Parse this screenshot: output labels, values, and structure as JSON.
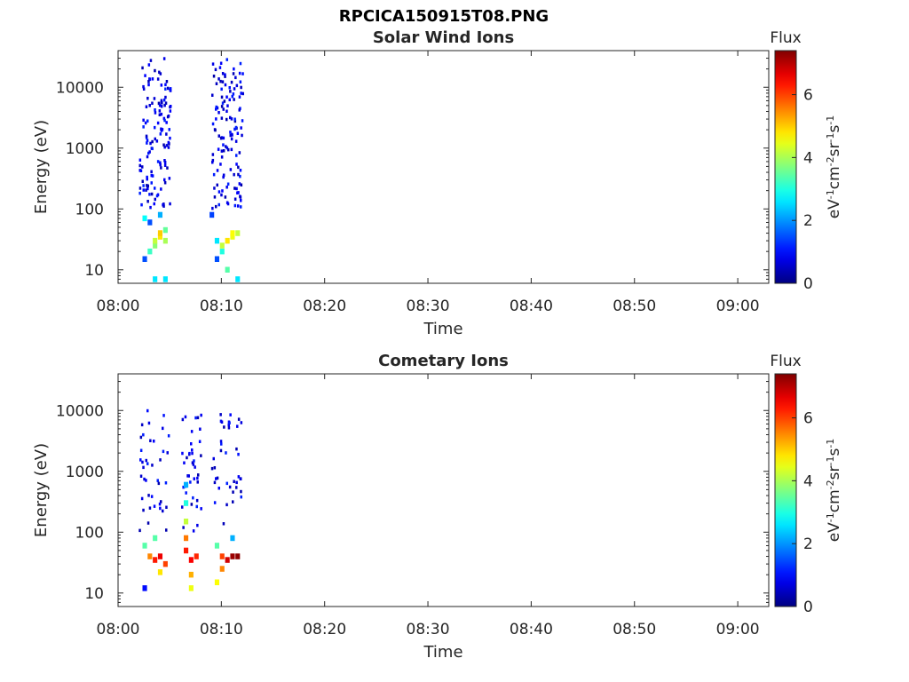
{
  "title": "RPCICA150915T08.PNG",
  "chart_data": [
    {
      "type": "heatmap",
      "title": "Solar Wind Ions",
      "xlabel": "Time",
      "ylabel": "Energy (eV)",
      "x_ticks": [
        "08:00",
        "08:10",
        "08:20",
        "08:30",
        "08:40",
        "08:50",
        "09:00"
      ],
      "x_range": [
        "08:00",
        "09:03"
      ],
      "y_ticks": [
        "10",
        "100",
        "1000",
        "10000"
      ],
      "y_range": [
        6,
        40000
      ],
      "y_scale": "log",
      "colorbar": {
        "label": "Flux",
        "units": "eV-1cm-2sr-1s-1",
        "range": [
          0,
          7.4
        ],
        "ticks": [
          "0",
          "2",
          "4",
          "6"
        ],
        "colormap": "jet"
      },
      "bursts": [
        {
          "start": "08:02",
          "end": "08:05",
          "cells": [
            {
              "t": "08:02:30",
              "e": 15,
              "v": 1.5
            },
            {
              "t": "08:03:00",
              "e": 20,
              "v": 3.2
            },
            {
              "t": "08:03:30",
              "e": 25,
              "v": 3.8
            },
            {
              "t": "08:03:30",
              "e": 30,
              "v": 4.2
            },
            {
              "t": "08:04:00",
              "e": 35,
              "v": 4.8
            },
            {
              "t": "08:04:00",
              "e": 40,
              "v": 5.0
            },
            {
              "t": "08:04:30",
              "e": 30,
              "v": 4.0
            },
            {
              "t": "08:04:30",
              "e": 45,
              "v": 3.5
            },
            {
              "t": "08:03:00",
              "e": 60,
              "v": 1.5
            },
            {
              "t": "08:04:00",
              "e": 80,
              "v": 2.2
            },
            {
              "t": "08:02:30",
              "e": 70,
              "v": 2.8
            },
            {
              "t": "08:03:30",
              "e": 7,
              "v": 2.6
            },
            {
              "t": "08:04:30",
              "e": 7,
              "v": 2.6
            }
          ]
        },
        {
          "start": "08:09",
          "end": "08:12",
          "cells": [
            {
              "t": "08:09:30",
              "e": 15,
              "v": 1.5
            },
            {
              "t": "08:10:00",
              "e": 20,
              "v": 3.0
            },
            {
              "t": "08:10:00",
              "e": 25,
              "v": 4.2
            },
            {
              "t": "08:10:30",
              "e": 30,
              "v": 4.8
            },
            {
              "t": "08:11:00",
              "e": 35,
              "v": 4.5
            },
            {
              "t": "08:11:00",
              "e": 40,
              "v": 4.6
            },
            {
              "t": "08:11:30",
              "e": 40,
              "v": 4.2
            },
            {
              "t": "08:09:30",
              "e": 30,
              "v": 2.6
            },
            {
              "t": "08:10:30",
              "e": 10,
              "v": 3.4
            },
            {
              "t": "08:09:00",
              "e": 80,
              "v": 1.4
            },
            {
              "t": "08:11:30",
              "e": 7,
              "v": 2.6
            }
          ]
        }
      ],
      "sparse_counts": {
        "range_eV": [
          100,
          30000
        ],
        "value": 0.3
      }
    },
    {
      "type": "heatmap",
      "title": "Cometary Ions",
      "xlabel": "Time",
      "ylabel": "Energy (eV)",
      "x_ticks": [
        "08:00",
        "08:10",
        "08:20",
        "08:30",
        "08:40",
        "08:50",
        "09:00"
      ],
      "x_range": [
        "08:00",
        "09:03"
      ],
      "y_ticks": [
        "10",
        "100",
        "1000",
        "10000"
      ],
      "y_range": [
        6,
        40000
      ],
      "y_scale": "log",
      "colorbar": {
        "label": "Flux",
        "units": "eV-1cm-2sr-1s-1",
        "range": [
          0,
          7.4
        ],
        "ticks": [
          "0",
          "2",
          "4",
          "6"
        ],
        "colormap": "jet"
      },
      "bursts": [
        {
          "start": "08:02",
          "end": "08:05",
          "cells": [
            {
              "t": "08:02:30",
              "e": 60,
              "v": 3.4
            },
            {
              "t": "08:03:00",
              "e": 40,
              "v": 5.5
            },
            {
              "t": "08:03:30",
              "e": 35,
              "v": 6.3
            },
            {
              "t": "08:04:00",
              "e": 40,
              "v": 6.6
            },
            {
              "t": "08:04:30",
              "e": 30,
              "v": 6.0
            },
            {
              "t": "08:04:00",
              "e": 22,
              "v": 4.8
            },
            {
              "t": "08:03:30",
              "e": 80,
              "v": 3.4
            },
            {
              "t": "08:02:30",
              "e": 12,
              "v": 1.0
            }
          ]
        },
        {
          "start": "08:06",
          "end": "08:08",
          "cells": [
            {
              "t": "08:06:30",
              "e": 600,
              "v": 2.2
            },
            {
              "t": "08:06:30",
              "e": 300,
              "v": 3.0
            },
            {
              "t": "08:06:30",
              "e": 150,
              "v": 4.2
            },
            {
              "t": "08:06:30",
              "e": 80,
              "v": 5.6
            },
            {
              "t": "08:06:30",
              "e": 50,
              "v": 6.3
            },
            {
              "t": "08:07:00",
              "e": 35,
              "v": 6.5
            },
            {
              "t": "08:07:30",
              "e": 40,
              "v": 6.2
            },
            {
              "t": "08:07:00",
              "e": 20,
              "v": 5.2
            },
            {
              "t": "08:07:00",
              "e": 12,
              "v": 4.5
            }
          ]
        },
        {
          "start": "08:09",
          "end": "08:12",
          "cells": [
            {
              "t": "08:09:30",
              "e": 60,
              "v": 3.4
            },
            {
              "t": "08:10:00",
              "e": 40,
              "v": 6.0
            },
            {
              "t": "08:10:30",
              "e": 35,
              "v": 6.8
            },
            {
              "t": "08:11:00",
              "e": 40,
              "v": 7.2
            },
            {
              "t": "08:11:30",
              "e": 40,
              "v": 7.3
            },
            {
              "t": "08:10:00",
              "e": 25,
              "v": 5.5
            },
            {
              "t": "08:09:30",
              "e": 15,
              "v": 4.6
            },
            {
              "t": "08:11:00",
              "e": 80,
              "v": 2.2
            }
          ]
        }
      ],
      "sparse_counts": {
        "range_eV": [
          100,
          10000
        ],
        "value": 0.3
      }
    }
  ]
}
